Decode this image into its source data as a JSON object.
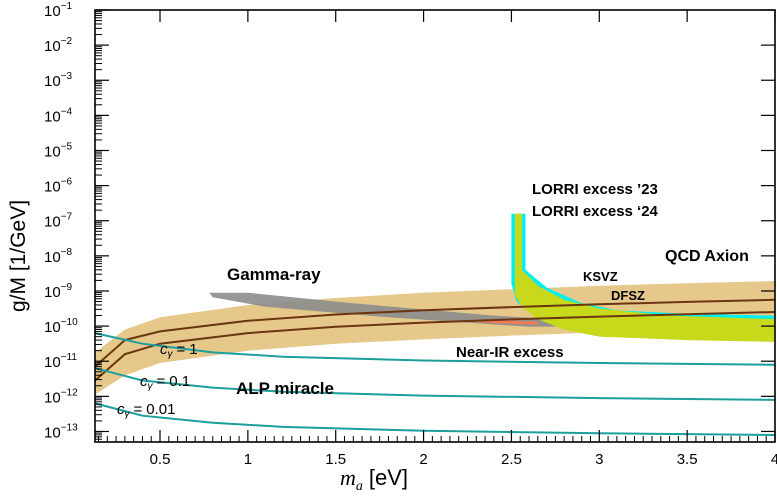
{
  "chart_data": {
    "type": "line",
    "xlabel_var": "m",
    "xlabel_sub": "a",
    "xlabel_unit": "[eV]",
    "ylabel": "g/M [1/GeV]",
    "xlim": [
      0.13,
      4.0
    ],
    "ylim_exp": [
      -13.3,
      -1
    ],
    "y_log_scale": true,
    "x_ticks": [
      {
        "v": 0.5,
        "label": "0.5"
      },
      {
        "v": 1.0,
        "label": "1"
      },
      {
        "v": 1.5,
        "label": "1.5"
      },
      {
        "v": 2.0,
        "label": "2"
      },
      {
        "v": 2.5,
        "label": "2.5"
      },
      {
        "v": 3.0,
        "label": "3"
      },
      {
        "v": 3.5,
        "label": "3.5"
      },
      {
        "v": 4.0,
        "label": "4"
      }
    ],
    "y_ticks": [
      {
        "exp": -1,
        "base": "10",
        "sup": "−1"
      },
      {
        "exp": -2,
        "base": "10",
        "sup": "−2"
      },
      {
        "exp": -3,
        "base": "10",
        "sup": "−3"
      },
      {
        "exp": -4,
        "base": "10",
        "sup": "−4"
      },
      {
        "exp": -5,
        "base": "10",
        "sup": "−5"
      },
      {
        "exp": -6,
        "base": "10",
        "sup": "−6"
      },
      {
        "exp": -7,
        "base": "10",
        "sup": "−7"
      },
      {
        "exp": -8,
        "base": "10",
        "sup": "−8"
      },
      {
        "exp": -9,
        "base": "10",
        "sup": "−9"
      },
      {
        "exp": -10,
        "base": "10",
        "sup": "−10"
      },
      {
        "exp": -11,
        "base": "10",
        "sup": "−11"
      },
      {
        "exp": -12,
        "base": "10",
        "sup": "−12"
      },
      {
        "exp": -13,
        "base": "10",
        "sup": "−13"
      }
    ],
    "qcd_band": {
      "name": "QCD Axion",
      "color": "#e6c98a",
      "upper": [
        [
          0.13,
          -10.75
        ],
        [
          0.3,
          -10.1
        ],
        [
          0.5,
          -9.75
        ],
        [
          1.0,
          -9.4
        ],
        [
          1.5,
          -9.2
        ],
        [
          2.0,
          -9.05
        ],
        [
          2.5,
          -8.95
        ],
        [
          3.0,
          -8.85
        ],
        [
          3.5,
          -8.78
        ],
        [
          4.0,
          -8.72
        ]
      ],
      "lower": [
        [
          0.13,
          -11.95
        ],
        [
          0.3,
          -11.4
        ],
        [
          0.5,
          -11.05
        ],
        [
          1.0,
          -10.7
        ],
        [
          1.5,
          -10.5
        ],
        [
          2.0,
          -10.38
        ],
        [
          2.5,
          -10.27
        ],
        [
          3.0,
          -10.18
        ],
        [
          3.5,
          -10.1
        ],
        [
          4.0,
          -10.03
        ]
      ]
    },
    "ksvz": {
      "name": "KSVZ",
      "color": "#6b3510",
      "points": [
        [
          0.13,
          -11.15
        ],
        [
          0.3,
          -10.4
        ],
        [
          0.5,
          -10.15
        ],
        [
          1.0,
          -9.85
        ],
        [
          1.5,
          -9.67
        ],
        [
          2.0,
          -9.55
        ],
        [
          2.5,
          -9.46
        ],
        [
          3.0,
          -9.38
        ],
        [
          3.5,
          -9.31
        ],
        [
          4.0,
          -9.25
        ]
      ]
    },
    "dfsz": {
      "name": "DFSZ",
      "color": "#6b3510",
      "points": [
        [
          0.13,
          -11.55
        ],
        [
          0.3,
          -10.8
        ],
        [
          0.5,
          -10.5
        ],
        [
          1.0,
          -10.2
        ],
        [
          1.5,
          -10.02
        ],
        [
          2.0,
          -9.9
        ],
        [
          2.5,
          -9.81
        ],
        [
          3.0,
          -9.73
        ],
        [
          3.5,
          -9.66
        ],
        [
          4.0,
          -9.6
        ]
      ]
    },
    "alp_lines": [
      {
        "name": "c_gamma_1",
        "points": [
          [
            0.13,
            -10.2
          ],
          [
            0.4,
            -10.5
          ],
          [
            0.8,
            -10.75
          ],
          [
            1.2,
            -10.87
          ],
          [
            2.0,
            -10.98
          ],
          [
            3.0,
            -11.05
          ],
          [
            4.0,
            -11.1
          ]
        ]
      },
      {
        "name": "c_gamma_0.1",
        "points": [
          [
            0.13,
            -11.2
          ],
          [
            0.4,
            -11.55
          ],
          [
            0.8,
            -11.75
          ],
          [
            1.2,
            -11.87
          ],
          [
            2.0,
            -11.98
          ],
          [
            3.0,
            -12.05
          ],
          [
            4.0,
            -12.1
          ]
        ]
      },
      {
        "name": "c_gamma_0.01",
        "points": [
          [
            0.13,
            -12.2
          ],
          [
            0.4,
            -12.55
          ],
          [
            0.8,
            -12.75
          ],
          [
            1.2,
            -12.87
          ],
          [
            2.0,
            -12.98
          ],
          [
            3.0,
            -13.05
          ],
          [
            4.0,
            -13.1
          ]
        ]
      }
    ],
    "alp_color": "#1a9e9e",
    "gamma_ray": {
      "name": "Gamma-ray",
      "color": "#8c8c8c",
      "polygon": [
        [
          0.78,
          -9.05
        ],
        [
          1.0,
          -9.05
        ],
        [
          1.6,
          -9.35
        ],
        [
          2.4,
          -9.7
        ],
        [
          3.4,
          -10.0
        ],
        [
          2.6,
          -10.02
        ],
        [
          1.8,
          -9.75
        ],
        [
          1.1,
          -9.45
        ],
        [
          0.8,
          -9.18
        ]
      ]
    },
    "near_ir": {
      "name": "Near-IR excess",
      "color": "#f07a5a",
      "segments": [
        [
          [
            2.3,
            -9.85
          ],
          [
            2.65,
            -9.92
          ]
        ],
        [
          [
            2.75,
            -9.93
          ],
          [
            3.0,
            -9.95
          ]
        ]
      ]
    },
    "lorri23": {
      "name": "LORRI excess ’23",
      "color": "#00f0f0",
      "polygon": [
        [
          2.5,
          -6.8
        ],
        [
          2.58,
          -6.8
        ],
        [
          2.58,
          -8.4
        ],
        [
          2.7,
          -8.9
        ],
        [
          2.9,
          -9.35
        ],
        [
          3.1,
          -9.55
        ],
        [
          3.5,
          -9.65
        ],
        [
          4.0,
          -9.7
        ],
        [
          4.0,
          -10.15
        ],
        [
          3.5,
          -10.08
        ],
        [
          3.0,
          -9.98
        ],
        [
          2.75,
          -9.82
        ],
        [
          2.6,
          -9.6
        ],
        [
          2.53,
          -9.3
        ],
        [
          2.5,
          -8.8
        ]
      ]
    },
    "lorri24": {
      "name": "LORRI excess ‘24",
      "color": "#c8d81a",
      "polygon": [
        [
          2.52,
          -6.8
        ],
        [
          2.56,
          -6.8
        ],
        [
          2.56,
          -8.4
        ],
        [
          2.65,
          -8.85
        ],
        [
          2.8,
          -9.25
        ],
        [
          3.0,
          -9.5
        ],
        [
          3.4,
          -9.7
        ],
        [
          4.0,
          -9.8
        ],
        [
          4.0,
          -10.45
        ],
        [
          3.5,
          -10.4
        ],
        [
          3.0,
          -10.3
        ],
        [
          2.8,
          -10.1
        ],
        [
          2.65,
          -9.8
        ],
        [
          2.56,
          -9.45
        ],
        [
          2.52,
          -9.1
        ]
      ]
    },
    "labels": {
      "lorri23": "LORRI excess ’23",
      "lorri24": "LORRI excess ‘24",
      "qcd": "QCD Axion",
      "ksvz": "KSVZ",
      "dfsz": "DFSZ",
      "gamma": "Gamma-ray",
      "nearir": "Near-IR excess",
      "alp": "ALP miracle",
      "c1": "1",
      "c01": "0.1",
      "c001": "0.01",
      "c_sym": "c",
      "c_sub": "γ",
      "c_eq": "="
    },
    "label_colors": {
      "lorri23": "#00e8e8",
      "lorri24": "#d4c800",
      "qcd": "#c8961e",
      "brown": "#6b3510",
      "gamma": "#8c8c8c",
      "nearir": "#f0a020",
      "alp": "#28c0c0"
    }
  }
}
